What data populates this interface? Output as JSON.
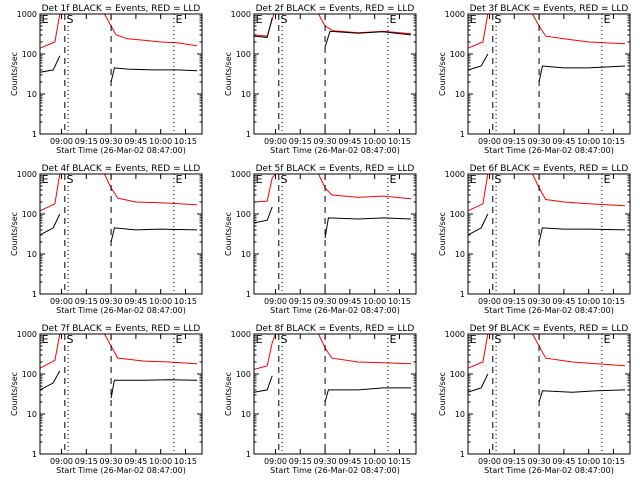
{
  "figure": {
    "ylabel": "Counts/sec",
    "xlabel": "Start Time (26-Mar-02 08:47:00)"
  },
  "chart_data": [
    {
      "type": "line",
      "title": "Det 1f BLACK = Events, RED = LLD",
      "xlabel": "Start Time (26-Mar-02 08:47:00)",
      "ylabel": "Counts/sec",
      "x_ticks": [
        "09:00",
        "09:15",
        "09:30",
        "09:45",
        "10:00",
        "10:15"
      ],
      "y_ticks": [
        "1",
        "10",
        "100",
        "1000"
      ],
      "ylim": [
        1,
        1000
      ],
      "yscale": "log",
      "markers": [
        "E",
        "S",
        "E"
      ],
      "series": [
        {
          "color": "#ff0000",
          "points": [
            [
              "08:47",
              140
            ],
            [
              "08:56",
              200
            ],
            [
              "08:59",
              1000
            ],
            [
              "09:08",
              1000
            ],
            [
              "09:12",
              1000
            ],
            [
              "09:26",
              1000
            ],
            [
              "09:30",
              500
            ],
            [
              "09:33",
              300
            ],
            [
              "09:40",
              240
            ],
            [
              "09:50",
              220
            ],
            [
              "10:00",
              200
            ],
            [
              "10:10",
              190
            ],
            [
              "10:22",
              160
            ]
          ]
        },
        {
          "color": "#000000",
          "points": [
            [
              "08:47",
              35
            ],
            [
              "08:55",
              40
            ],
            [
              "08:59",
              90
            ],
            [
              "09:01",
              null
            ],
            [
              "09:29",
              null
            ],
            [
              "09:30",
              20
            ],
            [
              "09:32",
              45
            ],
            [
              "09:40",
              42
            ],
            [
              "09:55",
              40
            ],
            [
              "10:10",
              40
            ],
            [
              "10:22",
              38
            ]
          ]
        }
      ]
    },
    {
      "type": "line",
      "title": "Det 2f BLACK = Events, RED = LLD",
      "xlabel": "Start Time (26-Mar-02 08:47:00)",
      "ylabel": "Counts/sec",
      "x_ticks": [
        "09:00",
        "09:15",
        "09:30",
        "09:45",
        "10:00",
        "10:15"
      ],
      "y_ticks": [
        "1",
        "10",
        "100",
        "1000"
      ],
      "ylim": [
        1,
        1000
      ],
      "yscale": "log",
      "markers": [
        "E",
        "S",
        "E"
      ],
      "series": [
        {
          "color": "#ff0000",
          "points": [
            [
              "08:47",
              300
            ],
            [
              "08:55",
              280
            ],
            [
              "08:59",
              1000
            ],
            [
              "09:08",
              1000
            ],
            [
              "09:12",
              1000
            ],
            [
              "09:26",
              1000
            ],
            [
              "09:30",
              500
            ],
            [
              "09:35",
              380
            ],
            [
              "09:50",
              340
            ],
            [
              "10:05",
              370
            ],
            [
              "10:22",
              320
            ]
          ]
        },
        {
          "color": "#000000",
          "points": [
            [
              "08:47",
              280
            ],
            [
              "08:55",
              260
            ],
            [
              "08:58",
              800
            ],
            [
              "09:01",
              null
            ],
            [
              "09:29",
              null
            ],
            [
              "09:30",
              150
            ],
            [
              "09:33",
              370
            ],
            [
              "09:50",
              330
            ],
            [
              "10:05",
              360
            ],
            [
              "10:22",
              300
            ]
          ]
        }
      ]
    },
    {
      "type": "line",
      "title": "Det 3f BLACK = Events, RED = LLD",
      "xlabel": "Start Time (26-Mar-02 08:47:00)",
      "ylabel": "Counts/sec",
      "x_ticks": [
        "09:00",
        "09:15",
        "09:30",
        "09:45",
        "10:00",
        "10:15"
      ],
      "y_ticks": [
        "1",
        "10",
        "100",
        "1000"
      ],
      "ylim": [
        1,
        1000
      ],
      "yscale": "log",
      "markers": [
        "E",
        "S",
        "E"
      ],
      "series": [
        {
          "color": "#ff0000",
          "points": [
            [
              "08:47",
              140
            ],
            [
              "08:56",
              200
            ],
            [
              "08:59",
              1000
            ],
            [
              "09:08",
              1000
            ],
            [
              "09:12",
              1000
            ],
            [
              "09:26",
              1000
            ],
            [
              "09:30",
              500
            ],
            [
              "09:34",
              280
            ],
            [
              "09:45",
              240
            ],
            [
              "10:00",
              200
            ],
            [
              "10:22",
              180
            ]
          ]
        },
        {
          "color": "#000000",
          "points": [
            [
              "08:47",
              40
            ],
            [
              "08:55",
              50
            ],
            [
              "08:59",
              100
            ],
            [
              "09:01",
              null
            ],
            [
              "09:29",
              null
            ],
            [
              "09:30",
              20
            ],
            [
              "09:32",
              50
            ],
            [
              "09:45",
              45
            ],
            [
              "10:00",
              45
            ],
            [
              "10:22",
              50
            ]
          ]
        }
      ]
    },
    {
      "type": "line",
      "title": "Det 4f BLACK = Events, RED = LLD",
      "xlabel": "Start Time (26-Mar-02 08:47:00)",
      "ylabel": "Counts/sec",
      "x_ticks": [
        "09:00",
        "09:15",
        "09:30",
        "09:45",
        "10:00",
        "10:15"
      ],
      "y_ticks": [
        "1",
        "10",
        "100",
        "1000"
      ],
      "ylim": [
        1,
        1000
      ],
      "yscale": "log",
      "markers": [
        "E",
        "S",
        "E"
      ],
      "series": [
        {
          "color": "#ff0000",
          "points": [
            [
              "08:47",
              120
            ],
            [
              "08:56",
              180
            ],
            [
              "08:59",
              1000
            ],
            [
              "09:08",
              1000
            ],
            [
              "09:12",
              1000
            ],
            [
              "09:26",
              1000
            ],
            [
              "09:30",
              450
            ],
            [
              "09:34",
              250
            ],
            [
              "09:45",
              200
            ],
            [
              "10:00",
              190
            ],
            [
              "10:22",
              170
            ]
          ]
        },
        {
          "color": "#000000",
          "points": [
            [
              "08:47",
              30
            ],
            [
              "08:55",
              45
            ],
            [
              "08:59",
              100
            ],
            [
              "09:01",
              null
            ],
            [
              "09:29",
              null
            ],
            [
              "09:30",
              20
            ],
            [
              "09:32",
              45
            ],
            [
              "09:45",
              40
            ],
            [
              "10:00",
              42
            ],
            [
              "10:22",
              40
            ]
          ]
        }
      ]
    },
    {
      "type": "line",
      "title": "Det 5f BLACK = Events, RED = LLD",
      "xlabel": "Start Time (26-Mar-02 08:47:00)",
      "ylabel": "Counts/sec",
      "x_ticks": [
        "09:00",
        "09:15",
        "09:30",
        "09:45",
        "10:00",
        "10:15"
      ],
      "y_ticks": [
        "1",
        "10",
        "100",
        "1000"
      ],
      "ylim": [
        1,
        1000
      ],
      "yscale": "log",
      "markers": [
        "E",
        "S",
        "E"
      ],
      "series": [
        {
          "color": "#ff0000",
          "points": [
            [
              "08:47",
              200
            ],
            [
              "08:55",
              210
            ],
            [
              "08:58",
              800
            ],
            [
              "09:00",
              1000
            ],
            [
              "09:26",
              1000
            ],
            [
              "09:30",
              450
            ],
            [
              "09:34",
              300
            ],
            [
              "09:50",
              260
            ],
            [
              "10:05",
              280
            ],
            [
              "10:22",
              240
            ]
          ]
        },
        {
          "color": "#000000",
          "points": [
            [
              "08:47",
              60
            ],
            [
              "08:55",
              70
            ],
            [
              "08:58",
              150
            ],
            [
              "09:01",
              null
            ],
            [
              "09:29",
              null
            ],
            [
              "09:30",
              25
            ],
            [
              "09:32",
              80
            ],
            [
              "09:50",
              75
            ],
            [
              "10:05",
              80
            ],
            [
              "10:22",
              75
            ]
          ]
        }
      ]
    },
    {
      "type": "line",
      "title": "Det 6f BLACK = Events, RED = LLD",
      "xlabel": "Start Time (26-Mar-02 08:47:00)",
      "ylabel": "Counts/sec",
      "x_ticks": [
        "09:00",
        "09:15",
        "09:30",
        "09:45",
        "10:00",
        "10:15"
      ],
      "y_ticks": [
        "1",
        "10",
        "100",
        "1000"
      ],
      "ylim": [
        1,
        1000
      ],
      "yscale": "log",
      "markers": [
        "E",
        "S",
        "E"
      ],
      "series": [
        {
          "color": "#ff0000",
          "points": [
            [
              "08:47",
              120
            ],
            [
              "08:56",
              180
            ],
            [
              "08:59",
              1000
            ],
            [
              "09:08",
              1000
            ],
            [
              "09:12",
              1000
            ],
            [
              "09:26",
              1000
            ],
            [
              "09:30",
              450
            ],
            [
              "09:34",
              230
            ],
            [
              "09:45",
              200
            ],
            [
              "10:00",
              180
            ],
            [
              "10:22",
              160
            ]
          ]
        },
        {
          "color": "#000000",
          "points": [
            [
              "08:47",
              30
            ],
            [
              "08:55",
              45
            ],
            [
              "08:59",
              100
            ],
            [
              "09:01",
              null
            ],
            [
              "09:29",
              null
            ],
            [
              "09:30",
              20
            ],
            [
              "09:32",
              45
            ],
            [
              "09:45",
              42
            ],
            [
              "10:00",
              42
            ],
            [
              "10:22",
              40
            ]
          ]
        }
      ]
    },
    {
      "type": "line",
      "title": "Det 7f BLACK = Events, RED = LLD",
      "xlabel": "Start Time (26-Mar-02 08:47:00)",
      "ylabel": "Counts/sec",
      "x_ticks": [
        "09:00",
        "09:15",
        "09:30",
        "09:45",
        "10:00",
        "10:15"
      ],
      "y_ticks": [
        "1",
        "10",
        "100",
        "1000"
      ],
      "ylim": [
        1,
        1000
      ],
      "yscale": "log",
      "markers": [
        "E",
        "S",
        "E"
      ],
      "series": [
        {
          "color": "#ff0000",
          "points": [
            [
              "08:47",
              140
            ],
            [
              "08:56",
              220
            ],
            [
              "08:59",
              1000
            ],
            [
              "09:08",
              1000
            ],
            [
              "09:12",
              1000
            ],
            [
              "09:26",
              1000
            ],
            [
              "09:30",
              500
            ],
            [
              "09:34",
              250
            ],
            [
              "09:50",
              210
            ],
            [
              "10:05",
              200
            ],
            [
              "10:22",
              180
            ]
          ]
        },
        {
          "color": "#000000",
          "points": [
            [
              "08:47",
              40
            ],
            [
              "08:55",
              60
            ],
            [
              "08:59",
              120
            ],
            [
              "09:01",
              null
            ],
            [
              "09:29",
              null
            ],
            [
              "09:30",
              25
            ],
            [
              "09:32",
              70
            ],
            [
              "09:50",
              70
            ],
            [
              "10:05",
              72
            ],
            [
              "10:22",
              70
            ]
          ]
        }
      ]
    },
    {
      "type": "line",
      "title": "Det 8f BLACK = Events, RED = LLD",
      "xlabel": "Start Time (26-Mar-02 08:47:00)",
      "ylabel": "Counts/sec",
      "x_ticks": [
        "09:00",
        "09:15",
        "09:30",
        "09:45",
        "10:00",
        "10:15"
      ],
      "y_ticks": [
        "1",
        "10",
        "100",
        "1000"
      ],
      "ylim": [
        1,
        1000
      ],
      "yscale": "log",
      "markers": [
        "E",
        "S",
        "E"
      ],
      "series": [
        {
          "color": "#ff0000",
          "points": [
            [
              "08:47",
              130
            ],
            [
              "08:55",
              160
            ],
            [
              "08:58",
              600
            ],
            [
              "09:00",
              1000
            ],
            [
              "09:26",
              1000
            ],
            [
              "09:30",
              450
            ],
            [
              "09:34",
              250
            ],
            [
              "09:50",
              200
            ],
            [
              "10:05",
              190
            ],
            [
              "10:22",
              180
            ]
          ]
        },
        {
          "color": "#000000",
          "points": [
            [
              "08:47",
              35
            ],
            [
              "08:55",
              40
            ],
            [
              "08:58",
              90
            ],
            [
              "09:01",
              null
            ],
            [
              "09:29",
              null
            ],
            [
              "09:30",
              20
            ],
            [
              "09:32",
              40
            ],
            [
              "09:50",
              40
            ],
            [
              "10:05",
              45
            ],
            [
              "10:22",
              45
            ]
          ]
        }
      ]
    },
    {
      "type": "line",
      "title": "Det 9f BLACK = Events, RED = LLD",
      "xlabel": "Start Time (26-Mar-02 08:47:00)",
      "ylabel": "Counts/sec",
      "x_ticks": [
        "09:00",
        "09:15",
        "09:30",
        "09:45",
        "10:00",
        "10:15"
      ],
      "y_ticks": [
        "1",
        "10",
        "100",
        "1000"
      ],
      "ylim": [
        1,
        1000
      ],
      "yscale": "log",
      "markers": [
        "E",
        "S",
        "E"
      ],
      "series": [
        {
          "color": "#ff0000",
          "points": [
            [
              "08:47",
              140
            ],
            [
              "08:56",
              200
            ],
            [
              "08:59",
              1000
            ],
            [
              "09:08",
              1000
            ],
            [
              "09:12",
              1000
            ],
            [
              "09:26",
              1000
            ],
            [
              "09:30",
              500
            ],
            [
              "09:34",
              250
            ],
            [
              "09:50",
              200
            ],
            [
              "10:05",
              180
            ],
            [
              "10:22",
              160
            ]
          ]
        },
        {
          "color": "#000000",
          "points": [
            [
              "08:47",
              35
            ],
            [
              "08:55",
              45
            ],
            [
              "08:59",
              100
            ],
            [
              "09:01",
              null
            ],
            [
              "09:29",
              null
            ],
            [
              "09:30",
              20
            ],
            [
              "09:32",
              38
            ],
            [
              "09:50",
              35
            ],
            [
              "10:05",
              38
            ],
            [
              "10:22",
              40
            ]
          ]
        }
      ]
    }
  ]
}
